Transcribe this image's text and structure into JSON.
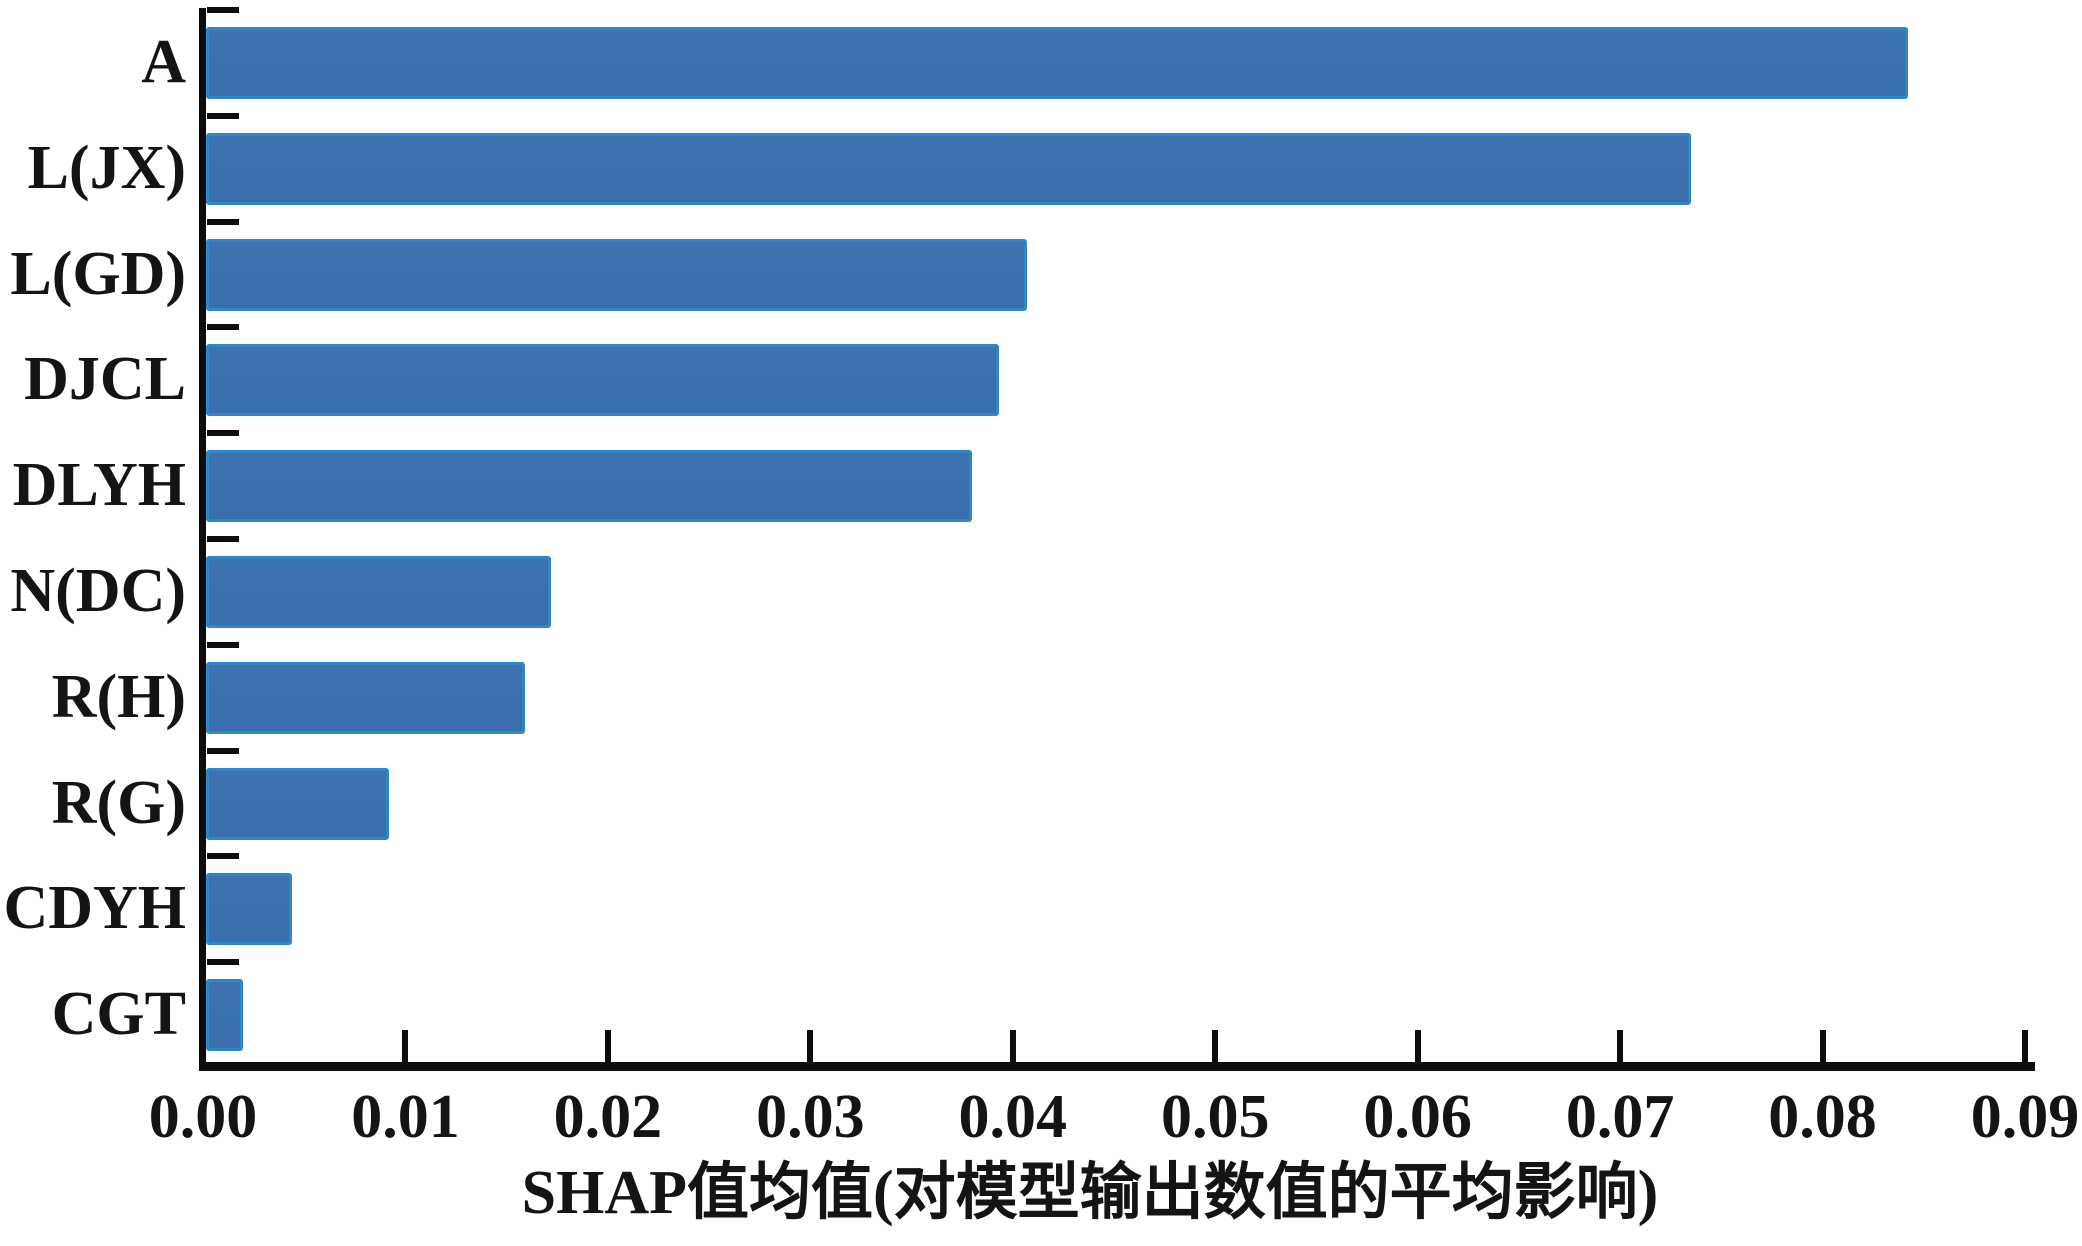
{
  "chart_data": {
    "type": "bar",
    "orientation": "horizontal",
    "title": "",
    "xlabel": "SHAP值均值(对模型输出数值的平均影响)",
    "ylabel": "",
    "categories": [
      "A",
      "L(JX)",
      "L(GD)",
      "DJCL",
      "DLYH",
      "N(DC)",
      "R(H)",
      "R(G)",
      "CDYH",
      "CGT"
    ],
    "values": [
      0.0842,
      0.0735,
      0.0407,
      0.0393,
      0.038,
      0.0172,
      0.0159,
      0.0092,
      0.0044,
      0.002
    ],
    "xlim": [
      0,
      0.09
    ],
    "xticks": [
      "0.00",
      "0.01",
      "0.02",
      "0.03",
      "0.04",
      "0.05",
      "0.06",
      "0.07",
      "0.08",
      "0.09"
    ],
    "grid": false,
    "legend_position": "none",
    "colors": {
      "bar_fill": "#3d71b0",
      "bar_edge": "#2f86c8",
      "axis": "#0d0d0d",
      "text": "#141414",
      "background": "#ffffff"
    }
  }
}
